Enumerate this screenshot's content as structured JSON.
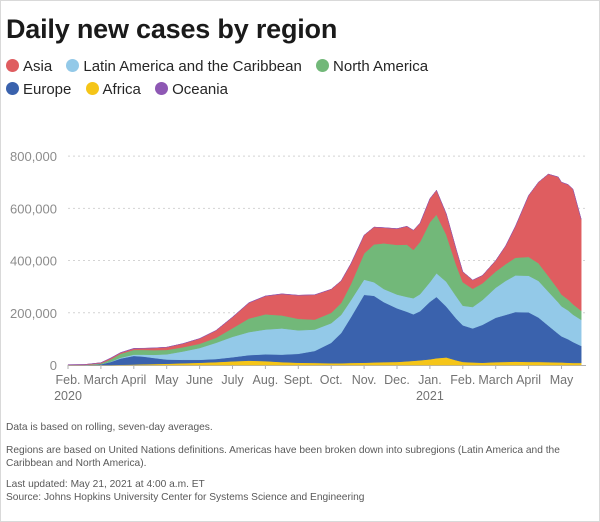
{
  "title": "Daily new cases by region",
  "notes": {
    "rolling": "Data is based on rolling, seven-day averages.",
    "regions": "Regions are based on United Nations definitions. Americas have been broken down into subregions (Latin America and the Caribbean and North America).",
    "updated": "Last updated: May 21, 2021 at 4:00 a.m. ET",
    "source": "Source: Johns Hopkins University Center for Systems Science and Engineering"
  },
  "chart_data": {
    "type": "area",
    "stacked": true,
    "title": "Daily new cases by region",
    "xlabel": "",
    "ylabel": "",
    "ylim": [
      0,
      900000
    ],
    "grid": true,
    "legend_position": "top",
    "yticks": [
      0,
      200000,
      400000,
      600000,
      800000
    ],
    "ytick_labels": [
      "0",
      "200,000",
      "400,000",
      "600,000",
      "800,000"
    ],
    "xticks": [
      {
        "t": 0,
        "label": "Feb.",
        "sub": "2020"
      },
      {
        "t": 1,
        "label": "March"
      },
      {
        "t": 2,
        "label": "April"
      },
      {
        "t": 3,
        "label": "May"
      },
      {
        "t": 4,
        "label": "June"
      },
      {
        "t": 5,
        "label": "July"
      },
      {
        "t": 6,
        "label": "Aug."
      },
      {
        "t": 7,
        "label": "Sept."
      },
      {
        "t": 8,
        "label": "Oct."
      },
      {
        "t": 9,
        "label": "Nov."
      },
      {
        "t": 10,
        "label": "Dec."
      },
      {
        "t": 11,
        "label": "Jan.",
        "sub": "2021"
      },
      {
        "t": 12,
        "label": "Feb."
      },
      {
        "t": 13,
        "label": "March"
      },
      {
        "t": 14,
        "label": "April"
      },
      {
        "t": 15,
        "label": "May"
      }
    ],
    "x_months_from_feb_2020": [
      0,
      0.5,
      1,
      1.3,
      1.6,
      2,
      2.3,
      2.6,
      3,
      3.5,
      4,
      4.5,
      5,
      5.5,
      6,
      6.5,
      7,
      7.5,
      8,
      8.3,
      8.6,
      9,
      9.3,
      9.6,
      10,
      10.3,
      10.5,
      10.7,
      11,
      11.2,
      11.5,
      11.8,
      12,
      12.3,
      12.6,
      13,
      13.3,
      13.6,
      14,
      14.3,
      14.6,
      14.9,
      15,
      15.2,
      15.35,
      15.6
    ],
    "series": [
      {
        "name": "Africa",
        "color": "#f5c518",
        "values": [
          0,
          0,
          0,
          0,
          1000,
          2000,
          3000,
          4000,
          5000,
          7000,
          9000,
          11000,
          14000,
          17000,
          15000,
          11000,
          9000,
          8000,
          7000,
          7000,
          8000,
          9000,
          10000,
          11000,
          12000,
          14000,
          16000,
          18000,
          22000,
          26000,
          29000,
          18000,
          12000,
          10000,
          9000,
          11000,
          12000,
          13000,
          12000,
          12000,
          11000,
          10000,
          10000,
          9000,
          8000,
          8000
        ]
      },
      {
        "name": "Europe",
        "color": "#3a62ad",
        "values": [
          0,
          0,
          3000,
          12000,
          24000,
          33000,
          29000,
          23000,
          16000,
          13000,
          11000,
          12000,
          16000,
          21000,
          26000,
          29000,
          34000,
          46000,
          78000,
          115000,
          175000,
          260000,
          255000,
          230000,
          205000,
          190000,
          178000,
          188000,
          220000,
          235000,
          195000,
          160000,
          140000,
          130000,
          145000,
          170000,
          180000,
          190000,
          190000,
          170000,
          140000,
          110000,
          100000,
          90000,
          80000,
          65000
        ]
      },
      {
        "name": "Latin America and the Caribbean",
        "color": "#93c9e8",
        "values": [
          0,
          0,
          0,
          1000,
          3000,
          5000,
          8000,
          12000,
          20000,
          32000,
          45000,
          62000,
          78000,
          88000,
          95000,
          100000,
          90000,
          82000,
          75000,
          70000,
          65000,
          58000,
          52000,
          50000,
          53000,
          57000,
          62000,
          65000,
          75000,
          90000,
          95000,
          85000,
          75000,
          82000,
          95000,
          115000,
          130000,
          140000,
          140000,
          140000,
          130000,
          120000,
          115000,
          110000,
          105000,
          100000
        ]
      },
      {
        "name": "North America",
        "color": "#72b879",
        "values": [
          0,
          0,
          3000,
          9000,
          15000,
          18000,
          18000,
          18000,
          17000,
          16000,
          16000,
          19000,
          33000,
          52000,
          58000,
          50000,
          44000,
          38000,
          40000,
          45000,
          62000,
          100000,
          145000,
          175000,
          190000,
          200000,
          185000,
          200000,
          230000,
          225000,
          180000,
          120000,
          90000,
          70000,
          64000,
          62000,
          64000,
          68000,
          72000,
          68000,
          60000,
          50000,
          45000,
          42000,
          40000,
          35000
        ]
      },
      {
        "name": "Asia",
        "color": "#df5d60",
        "values": [
          1000,
          2000,
          3000,
          4000,
          4000,
          5000,
          6000,
          8000,
          10000,
          14000,
          20000,
          28000,
          42000,
          60000,
          70000,
          82000,
          90000,
          95000,
          90000,
          85000,
          78000,
          70000,
          66000,
          60000,
          62000,
          70000,
          75000,
          72000,
          90000,
          93000,
          80000,
          60000,
          40000,
          33000,
          30000,
          42000,
          70000,
          120000,
          235000,
          310000,
          390000,
          430000,
          430000,
          440000,
          440000,
          350000
        ]
      },
      {
        "name": "Oceania",
        "color": "#8e58b4",
        "values": [
          0,
          0,
          0,
          1000,
          1000,
          1000,
          500,
          300,
          200,
          200,
          300,
          400,
          700,
          900,
          800,
          500,
          300,
          200,
          200,
          200,
          200,
          200,
          200,
          200,
          200,
          200,
          200,
          200,
          200,
          200,
          200,
          200,
          200,
          200,
          200,
          200,
          200,
          200,
          200,
          200,
          200,
          200,
          200,
          200,
          200,
          200
        ]
      }
    ],
    "legend_order": [
      "Asia",
      "Latin America and the Caribbean",
      "North America",
      "Europe",
      "Africa",
      "Oceania"
    ]
  }
}
